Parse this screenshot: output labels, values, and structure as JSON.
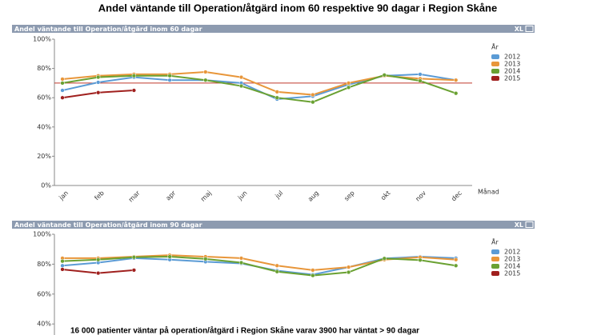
{
  "page_title": "Andel väntande till Operation/åtgärd inom 60 respektive 90 dagar i Region Skåne",
  "footnote": "16 000 patienter väntar på operation/åtgärd i Region Skåne varav 3900 har väntat > 90 dagar",
  "chart_data": [
    {
      "type": "line",
      "title": "Andel väntande till Operation/åtgärd inom 60 dagar",
      "header_button": "XL",
      "x_label": "Månad",
      "legend_title": "År",
      "categories": [
        "jan",
        "feb",
        "mar",
        "apr",
        "maj",
        "jun",
        "jul",
        "aug",
        "sep",
        "okt",
        "nov",
        "dec"
      ],
      "ylim": [
        0,
        100
      ],
      "yticks": [
        {
          "value": 0,
          "label": "0%"
        },
        {
          "value": 20,
          "label": "20%"
        },
        {
          "value": 40,
          "label": "40%"
        },
        {
          "value": 60,
          "label": "60%"
        },
        {
          "value": 80,
          "label": "80%"
        },
        {
          "value": 100,
          "label": "100%"
        }
      ],
      "reference_line": 70,
      "reference_color": "#c0392b",
      "series": [
        {
          "name": "2012",
          "color": "#5b9bd5",
          "values": [
            65,
            70.5,
            74,
            72,
            72,
            70,
            59,
            61,
            69,
            75,
            76,
            72
          ]
        },
        {
          "name": "2013",
          "color": "#e8963a",
          "values": [
            72.7,
            75,
            76,
            76,
            77.6,
            74,
            64,
            62,
            70,
            75,
            73,
            72
          ]
        },
        {
          "name": "2014",
          "color": "#6aa132",
          "values": [
            70,
            74,
            75,
            75,
            72,
            68,
            60,
            57,
            67,
            75.5,
            71.5,
            63
          ]
        },
        {
          "name": "2015",
          "color": "#a0201e",
          "values": [
            60,
            63.5,
            65,
            null,
            null,
            null,
            null,
            null,
            null,
            null,
            null,
            null
          ]
        }
      ]
    },
    {
      "type": "line",
      "title": "Andel väntande till Operation/åtgärd inom 90 dagar",
      "header_button": "XL",
      "legend_title": "År",
      "ylim": [
        0,
        100
      ],
      "yticks": [
        {
          "value": 40,
          "label": "40%"
        },
        {
          "value": 60,
          "label": "60%"
        },
        {
          "value": 80,
          "label": "80%"
        },
        {
          "value": 100,
          "label": "100%"
        }
      ],
      "series": [
        {
          "name": "2012",
          "color": "#5b9bd5",
          "values": [
            79,
            81,
            84,
            83,
            81.6,
            80.5,
            75.7,
            73,
            78,
            83.8,
            85,
            84
          ]
        },
        {
          "name": "2013",
          "color": "#e8963a",
          "values": [
            84,
            84,
            85,
            86,
            85,
            84,
            79,
            76,
            78,
            83,
            84.6,
            83
          ]
        },
        {
          "name": "2014",
          "color": "#6aa132",
          "values": [
            82,
            83,
            84.6,
            85,
            83.5,
            81,
            75,
            72.4,
            74.6,
            83.8,
            82.7,
            79
          ]
        },
        {
          "name": "2015",
          "color": "#a0201e",
          "values": [
            76.5,
            74,
            76,
            null,
            null,
            null,
            null,
            null,
            null,
            null,
            null,
            null
          ]
        }
      ]
    }
  ]
}
